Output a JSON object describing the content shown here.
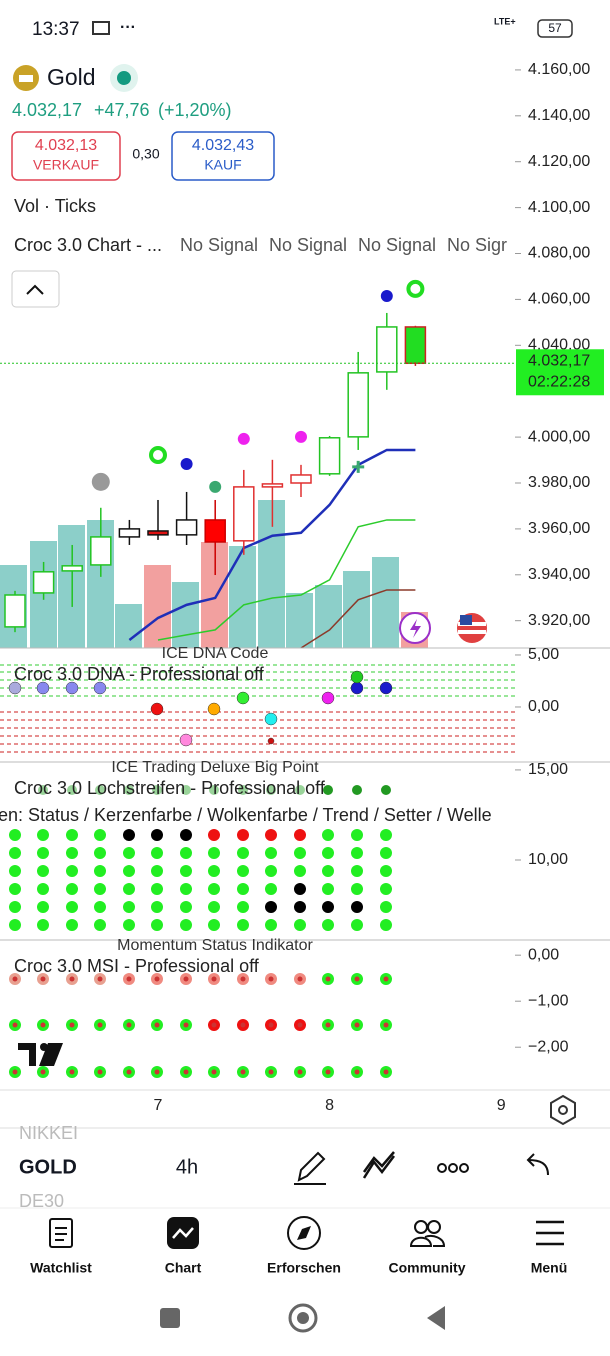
{
  "status_bar": {
    "time": "13:37",
    "network": "LTE+",
    "battery": "57"
  },
  "header": {
    "symbol": "Gold",
    "price": "4.032,17",
    "change": "+47,76",
    "change_pct": "(+1,20%)"
  },
  "quote": {
    "sell_price": "4.032,13",
    "sell_label": "VERKAUF",
    "spread": "0,30",
    "buy_price": "4.032,43",
    "buy_label": "KAUF"
  },
  "indicators": {
    "volume": "Vol · Ticks",
    "croc_chart": "Croc 3.0 Chart - ...",
    "signals": [
      "No Signal",
      "No Signal",
      "No Signal",
      "No Sigr"
    ]
  },
  "chart_data": {
    "type": "candlestick",
    "ylim": [
      3908.1,
      4166.5
    ],
    "yticks": [
      {
        "value": 4160,
        "label": "4.160,00"
      },
      {
        "value": 4140,
        "label": "4.140,00"
      },
      {
        "value": 4120,
        "label": "4.120,00"
      },
      {
        "value": 4100,
        "label": "4.100,00"
      },
      {
        "value": 4080,
        "label": "4.080,00"
      },
      {
        "value": 4060,
        "label": "4.060,00"
      },
      {
        "value": 4040,
        "label": "4.040,00"
      },
      {
        "value": 4000,
        "label": "4.000,00"
      },
      {
        "value": 3980,
        "label": "3.980,00"
      },
      {
        "value": 3960,
        "label": "3.960,00"
      },
      {
        "value": 3940,
        "label": "3.940,00"
      },
      {
        "value": 3920,
        "label": "3.920,00"
      }
    ],
    "categories": [
      null,
      null,
      null,
      null,
      null,
      "7",
      null,
      null,
      null,
      null,
      null,
      "8",
      null,
      null,
      null,
      null,
      null,
      "9"
    ],
    "candles": [
      {
        "o": 3917.3,
        "h": 3933,
        "l": 3915,
        "c": 3931.2,
        "fill": "#ffffff",
        "stroke": "#22c322"
      },
      {
        "o": 3932.1,
        "h": 3945.6,
        "l": 3929.1,
        "c": 3941.3,
        "fill": "#ffffff",
        "stroke": "#22c322"
      },
      {
        "o": 3941.7,
        "h": 3953.0,
        "l": 3926.0,
        "c": 3943.9,
        "fill": "#ffffff",
        "stroke": "#22c322"
      },
      {
        "o": 3944.3,
        "h": 3969.2,
        "l": 3939.1,
        "c": 3956.5,
        "fill": "#ffffff",
        "stroke": "#22c322"
      },
      {
        "o": 3956.5,
        "h": 3963.9,
        "l": 3953.0,
        "c": 3960.0,
        "fill": "#ffffff",
        "stroke": "#111111"
      },
      {
        "o": 3959.1,
        "h": 3972.6,
        "l": 3955.2,
        "c": 3957.4,
        "fill": "#dd1111",
        "stroke": "#111111"
      },
      {
        "o": 3957.4,
        "h": 3976.1,
        "l": 3953.0,
        "c": 3963.9,
        "fill": "#ffffff",
        "stroke": "#111111"
      },
      {
        "o": 3963.9,
        "h": 3972.6,
        "l": 3939.9,
        "c": 3954.3,
        "fill": "#ff0000",
        "stroke": "#cc0000"
      },
      {
        "o": 3954.8,
        "h": 3985.7,
        "l": 3948.7,
        "c": 3978.3,
        "fill": "#ffffff",
        "stroke": "#e03030"
      },
      {
        "o": 3978.3,
        "h": 3990.1,
        "l": 3960.9,
        "c": 3979.6,
        "fill": "#ffffff",
        "stroke": "#e03030"
      },
      {
        "o": 3980.0,
        "h": 3987.9,
        "l": 3973.9,
        "c": 3983.5,
        "fill": "#ffffff",
        "stroke": "#e03030"
      },
      {
        "o": 3984.0,
        "h": 4000.5,
        "l": 3983.1,
        "c": 3999.7,
        "fill": "#ffffff",
        "stroke": "#22c322"
      },
      {
        "o": 4000.1,
        "h": 4037.1,
        "l": 3994.4,
        "c": 4028.0,
        "fill": "#ffffff",
        "stroke": "#22c322"
      },
      {
        "o": 4028.4,
        "h": 4054.1,
        "l": 4020.6,
        "c": 4048.0,
        "fill": "#ffffff",
        "stroke": "#22c322"
      },
      {
        "o": 4048.0,
        "h": 4048.5,
        "l": 4031.0,
        "c": 4032.17,
        "fill": "#22dd22",
        "stroke": "#cc2222"
      },
      null,
      null,
      null
    ],
    "series": [
      {
        "color": "#1f2fb8",
        "values": [
          null,
          null,
          null,
          null,
          3911.6,
          3921.2,
          3926.9,
          3929.9,
          3951.7,
          3957.0,
          3958.3,
          3970.5,
          3987.9,
          3994.4,
          3994.4,
          null,
          null,
          null
        ]
      },
      {
        "color": "#2ccc2c",
        "values": [
          null,
          null,
          null,
          null,
          null,
          3911.6,
          3913.8,
          3916.0,
          3926.9,
          3929.9,
          3931.2,
          3937.8,
          3960.9,
          3963.9,
          3963.9,
          null,
          null,
          null
        ]
      },
      {
        "color": "#8b3a2a",
        "values": [
          null,
          null,
          null,
          null,
          null,
          null,
          null,
          null,
          null,
          null,
          3908.1,
          3916.0,
          3929.1,
          3933.4,
          3933.4,
          null,
          null,
          null
        ]
      }
    ],
    "signals": [
      {
        "index": 3,
        "value": 3980.5,
        "color": "#999999",
        "shape": "dot"
      },
      {
        "index": 5,
        "value": 3992.2,
        "color": "#22dd22",
        "shape": "ring"
      },
      {
        "index": 6,
        "value": 3988.3,
        "color": "#1a1acc",
        "shape": "dot"
      },
      {
        "index": 7,
        "value": 3978.3,
        "color": "#3aa870",
        "shape": "dot"
      },
      {
        "index": 8,
        "value": 3999.2,
        "color": "#ee22ee",
        "shape": "dot"
      },
      {
        "index": 10,
        "value": 4000.1,
        "color": "#ee22ee",
        "shape": "dot"
      },
      {
        "index": 12,
        "value": 3987.0,
        "color": "#3aa870",
        "shape": "plus"
      },
      {
        "index": 13,
        "value": 4061.5,
        "color": "#1a1acc",
        "shape": "dot"
      },
      {
        "index": 14,
        "value": 4064.6,
        "color": "#22dd22",
        "shape": "ring"
      }
    ],
    "last": {
      "value": 4032.17,
      "label": "4.032,17"
    },
    "countdown": "02:22:28"
  },
  "panels": [
    {
      "title": "ICE DNA Code",
      "subtitle": "Croc 3.0 DNA - Professional off",
      "ylim": [
        -5.29,
        5.67
      ],
      "yticks": [
        {
          "value": 5,
          "label": "5,00"
        },
        {
          "value": 0,
          "label": "0,00"
        }
      ]
    },
    {
      "title": "ICE Trading Deluxe Big Point",
      "subtitle": "Croc 3.0 Lochstreifen - Professional off",
      "legend": "en: Status / Kerzenfarbe / Wolkenfarbe / Trend / Setter / Welle",
      "ylim": [
        5.56,
        15.44
      ],
      "yticks": [
        {
          "value": 15,
          "label": "15,00"
        },
        {
          "value": 10,
          "label": "10,00"
        }
      ]
    },
    {
      "title": "Momentum Status Indikator",
      "subtitle": "Croc 3.0 MSI - Professional off",
      "ylim": [
        -2.93,
        0.33
      ],
      "yticks": [
        {
          "value": 0,
          "label": "0,00"
        },
        {
          "value": -1,
          "label": "−1,00"
        },
        {
          "value": -2,
          "label": "−2,00"
        }
      ]
    }
  ],
  "toolbar": {
    "symbols": [
      "NIKKEI",
      "GOLD",
      "DE30"
    ],
    "interval": "4h"
  },
  "nav": [
    "Watchlist",
    "Chart",
    "Erforschen",
    "Community",
    "Menü"
  ]
}
